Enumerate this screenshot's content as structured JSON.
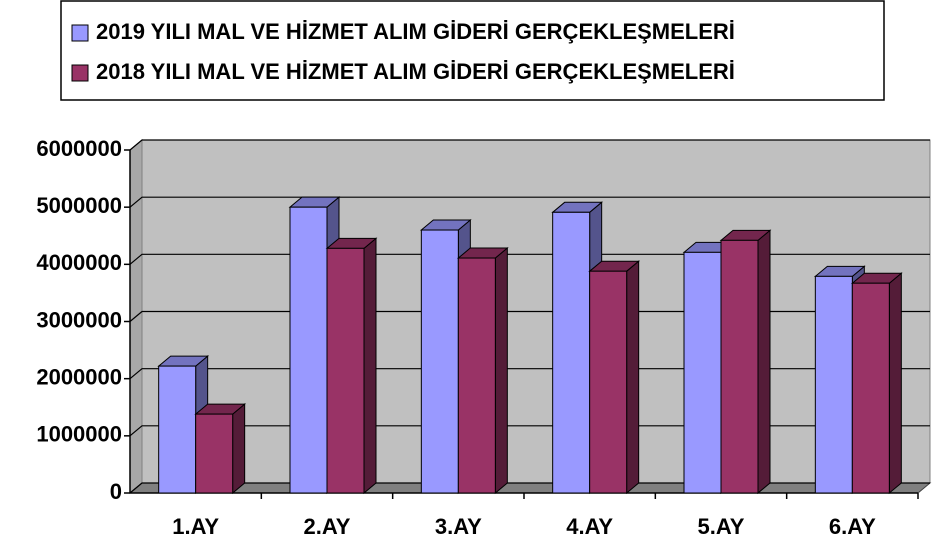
{
  "chart_data": {
    "type": "bar3d",
    "categories": [
      "1.AY",
      "2.AY",
      "3.AY",
      "4.AY",
      "5.AY",
      "6.AY"
    ],
    "series": [
      {
        "name": "2019 YILI MAL VE HİZMET ALIM GİDERİ GERÇEKLEŞMELERİ",
        "color": "#9999ff",
        "values": [
          2220000,
          5000000,
          4600000,
          4910000,
          4210000,
          3790000
        ]
      },
      {
        "name": "2018 YILI MAL VE HİZMET ALIM GİDERİ GERÇEKLEŞMELERİ",
        "color": "#993366",
        "values": [
          1380000,
          4280000,
          4110000,
          3880000,
          4420000,
          3670000
        ]
      }
    ],
    "ylim": [
      0,
      6000000
    ],
    "yticks": [
      0,
      1000000,
      2000000,
      3000000,
      4000000,
      5000000,
      6000000
    ],
    "grid": true,
    "legend": "top"
  }
}
